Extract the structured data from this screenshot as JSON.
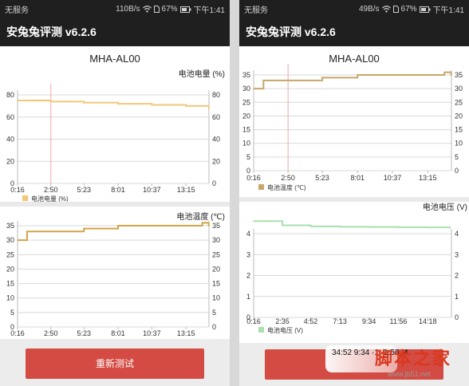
{
  "phones": [
    {
      "status": {
        "carrier": "无服务",
        "speed": "110B/s",
        "battery": "67%",
        "time": "下午1:41"
      },
      "app_title": "安兔兔评测 v6.2.6",
      "device": "MHA-AL00",
      "action_button": "重新测试",
      "charts": [
        {
          "ylabel": "电池电量 (%)",
          "legend": "电池电量 (%)",
          "color": "#f2c778",
          "ylim": [
            0,
            80
          ],
          "yticks": [
            "0",
            "20",
            "40",
            "60",
            "80"
          ],
          "xticks": [
            "0:16",
            "2:50",
            "5:23",
            "8:01",
            "10:37",
            "13:15"
          ],
          "marker_x": "2:50"
        },
        {
          "ylabel": "电池温度 (℃)",
          "legend": "",
          "color": "#d6a34a",
          "ylim": [
            0,
            35
          ],
          "yticks": [
            "0",
            "5",
            "10",
            "15",
            "20",
            "25",
            "30",
            "35"
          ],
          "xticks": [
            "0:16",
            "2:50",
            "5:23",
            "8:01",
            "10:37",
            "13:15"
          ],
          "marker_x": null
        }
      ]
    },
    {
      "status": {
        "carrier": "无服务",
        "speed": "49B/s",
        "battery": "67%",
        "time": "下午1:41"
      },
      "app_title": "安兔兔评测 v6.2.6",
      "device": "MHA-AL00",
      "action_button": "",
      "charts": [
        {
          "ylabel": "",
          "legend": "电池温度 (℃)",
          "color": "#c8a56a",
          "ylim": [
            0,
            35
          ],
          "yticks": [
            "0",
            "5",
            "10",
            "15",
            "20",
            "25",
            "30",
            "35"
          ],
          "xticks": [
            "0:16",
            "2:50",
            "5:23",
            "8:01",
            "10:37",
            "13:15"
          ],
          "marker_x": "2:50"
        },
        {
          "ylabel": "电池电压 (V)",
          "legend": "电池电压 (V)",
          "color": "#a8e0b0",
          "ylim": [
            0,
            4
          ],
          "yticks": [
            "0",
            "1",
            "2",
            "3",
            "4"
          ],
          "xticks": [
            "0:16",
            "2:35",
            "4:52",
            "7:13",
            "9:34",
            "11:56",
            "14:18"
          ],
          "marker_x": null
        }
      ]
    }
  ],
  "chart_data": [
    {
      "type": "line",
      "title": "",
      "xlabel": "",
      "ylabel": "电池电量 (%)",
      "x": [
        "0:16",
        "2:50",
        "5:23",
        "8:01",
        "10:37",
        "13:15",
        "15:00"
      ],
      "series": [
        {
          "name": "电池电量 (%)",
          "values": [
            75,
            74,
            73,
            72,
            71,
            70,
            68
          ]
        }
      ],
      "ylim": [
        0,
        80
      ],
      "grid": true
    },
    {
      "type": "line",
      "title": "",
      "xlabel": "",
      "ylabel": "电池温度 (℃)",
      "x": [
        "0:16",
        "1:00",
        "2:50",
        "5:23",
        "6:30",
        "8:01",
        "10:37",
        "13:15",
        "14:30",
        "15:00"
      ],
      "series": [
        {
          "name": "",
          "values": [
            30,
            33,
            33,
            34,
            34,
            35,
            35,
            35,
            36,
            35
          ]
        }
      ],
      "ylim": [
        0,
        35
      ],
      "grid": true
    },
    {
      "type": "line",
      "title": "",
      "xlabel": "",
      "ylabel": "",
      "x": [
        "0:16",
        "1:00",
        "2:50",
        "5:23",
        "6:30",
        "8:01",
        "10:37",
        "13:15",
        "14:30",
        "15:00"
      ],
      "series": [
        {
          "name": "电池温度 (℃)",
          "values": [
            30,
            33,
            33,
            34,
            34,
            35,
            35,
            35,
            36,
            35
          ]
        }
      ],
      "ylim": [
        0,
        35
      ],
      "grid": true
    },
    {
      "type": "line",
      "title": "",
      "xlabel": "",
      "ylabel": "电池电压 (V)",
      "x": [
        "0:16",
        "2:35",
        "4:52",
        "7:13",
        "9:34",
        "11:56",
        "14:18"
      ],
      "series": [
        {
          "name": "电池电压 (V)",
          "values": [
            4.6,
            4.4,
            4.35,
            4.33,
            4.32,
            4.31,
            4.3
          ]
        }
      ],
      "ylim": [
        0,
        4
      ],
      "grid": true
    }
  ],
  "watermark": {
    "overlay_text": "34:52 9:34 ·1 ·1:56 :4",
    "brand": "脚本之家",
    "url": "www.jb51.net"
  }
}
